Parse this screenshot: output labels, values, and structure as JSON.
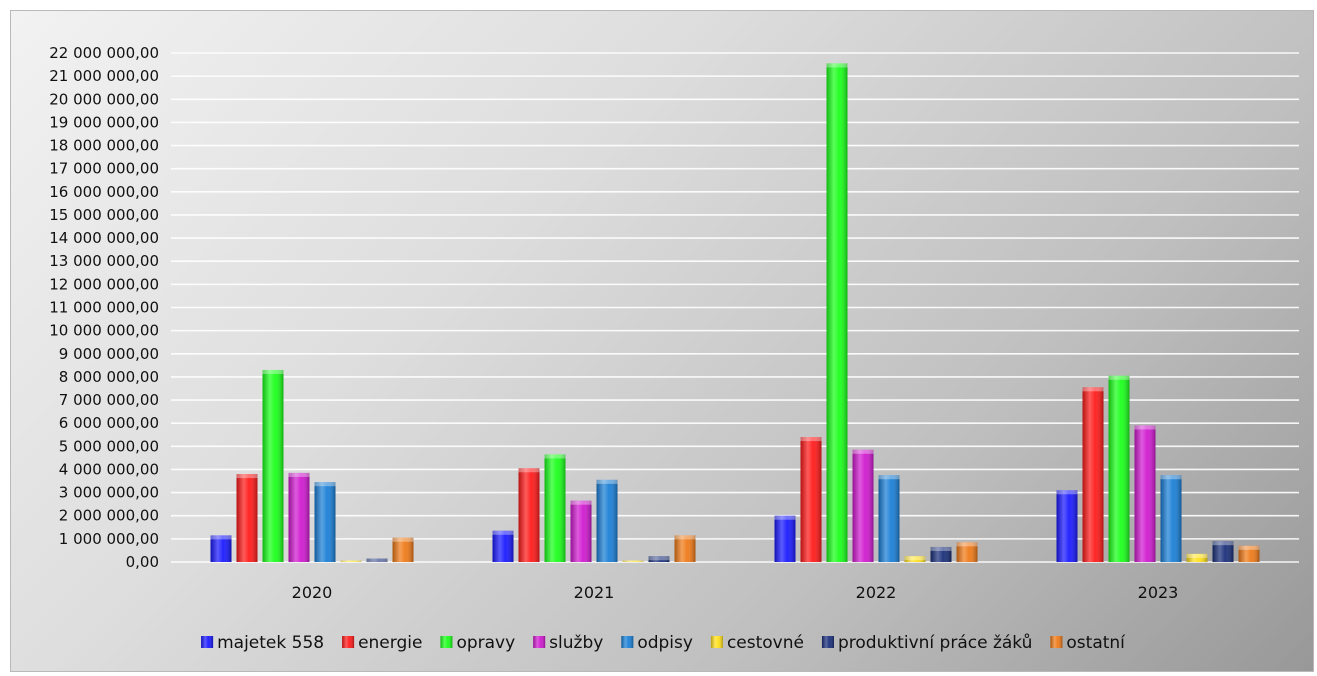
{
  "chart_data": {
    "type": "bar",
    "title": "",
    "xlabel": "",
    "ylabel": "",
    "ylim": [
      0,
      22000000
    ],
    "y_tick_step": 1000000,
    "grid": true,
    "legend_position": "bottom",
    "categories": [
      "2020",
      "2021",
      "2022",
      "2023"
    ],
    "series": [
      {
        "name": "majetek 558",
        "color": "#1a1aff",
        "values": [
          1150000,
          1350000,
          2000000,
          3100000
        ]
      },
      {
        "name": "energie",
        "color": "#ff1a1a",
        "values": [
          3800000,
          4050000,
          5400000,
          7550000
        ]
      },
      {
        "name": "opravy",
        "color": "#1aff1a",
        "values": [
          8300000,
          4650000,
          21550000,
          8050000
        ]
      },
      {
        "name": "služby",
        "color": "#d01ad0",
        "values": [
          3850000,
          2650000,
          4850000,
          5900000
        ]
      },
      {
        "name": "odpisy",
        "color": "#1a7fd6",
        "values": [
          3450000,
          3550000,
          3750000,
          3750000
        ]
      },
      {
        "name": "cestovné",
        "color": "#ffe01a",
        "values": [
          50000,
          50000,
          250000,
          350000
        ]
      },
      {
        "name": "produktivní práce žáků",
        "color": "#1a2f7a",
        "values": [
          150000,
          250000,
          650000,
          900000
        ]
      },
      {
        "name": "ostatní",
        "color": "#ef7a18",
        "values": [
          1050000,
          1150000,
          850000,
          700000
        ]
      }
    ]
  }
}
